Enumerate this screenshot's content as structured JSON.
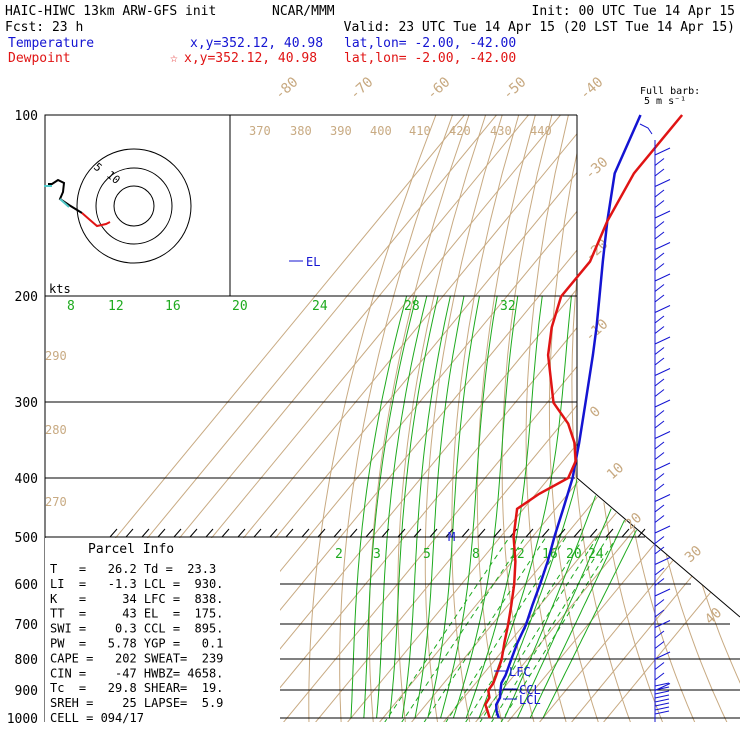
{
  "header": {
    "model": "HAIC-HIWC 13km ARW-GFS init",
    "org": "NCAR/MMM",
    "init": "Init: 00 UTC Tue 14 Apr 15",
    "fcst": "Fcst:    23 h",
    "valid": "Valid: 23 UTC Tue 14 Apr 15 (20 LST Tue 14 Apr 15)"
  },
  "legend": {
    "temperature": {
      "label": "Temperature",
      "xy": "x,y=352.12, 40.98",
      "latlon": "lat,lon= -2.00, -42.00",
      "color": "#1414d2"
    },
    "dewpoint": {
      "label": "Dewpoint",
      "star": "☆",
      "xy": "x,y=352.12, 40.98",
      "latlon": "lat,lon= -2.00, -42.00",
      "color": "#e01414"
    }
  },
  "barb_legend": {
    "line1": "Full barb:",
    "line2": "5 m s⁻¹"
  },
  "hodograph": {
    "units": "kts",
    "ring_labels": [
      "5",
      "10"
    ]
  },
  "parcel_info": {
    "title": "Parcel Info",
    "rows": [
      "T   =   26.2 Td =  23.3",
      "LI  =   -1.3 LCL =  930.",
      "K   =     34 LFC =  838.",
      "TT  =     43 EL  =  175.",
      "SWI =    0.3 CCL =  895.",
      "PW  =   5.78 YGP =   0.1",
      "CAPE =   202 SWEAT=  239",
      "CIN =    -47 HWBZ= 4658.",
      "Tc  =   29.8 SHEAR=  19.",
      "SREH =    25 LAPSE=  5.9",
      "CELL = 094/17"
    ]
  },
  "chart_data": {
    "type": "skew-t",
    "y_axis": "pressure (hPa), log scale",
    "pressure_ticks": [
      "100",
      "200",
      "300",
      "400",
      "500",
      "600",
      "700",
      "800",
      "900",
      "1000"
    ],
    "isotherm_labels": [
      "-80",
      "-70",
      "-60",
      "-50",
      "-40",
      "-30",
      "-20",
      "-10",
      "0",
      "10",
      "20",
      "30",
      "40"
    ],
    "theta_labels": [
      "370",
      "380",
      "390",
      "400",
      "410",
      "420",
      "430",
      "440",
      "290",
      "280",
      "270"
    ],
    "mixing_ratio_labels": [
      "2",
      "3",
      "5",
      "8",
      "12",
      "16",
      "20",
      "24"
    ],
    "theta_e_labels": [
      "8",
      "12",
      "16",
      "20",
      "24",
      "28",
      "32"
    ],
    "level_labels": [
      "EL",
      "M",
      "LFC",
      "CCL",
      "LCL"
    ],
    "series": [
      {
        "name": "Temperature",
        "color": "#1414d2",
        "points": [
          [
            1000,
            26.2
          ],
          [
            975,
            23.8
          ],
          [
            950,
            21.9
          ],
          [
            925,
            21.3
          ],
          [
            900,
            19.6
          ],
          [
            875,
            18.0
          ],
          [
            850,
            17.3
          ],
          [
            800,
            15.0
          ],
          [
            750,
            12.6
          ],
          [
            700,
            10.6
          ],
          [
            650,
            7.6
          ],
          [
            600,
            4.6
          ],
          [
            550,
            1.1
          ],
          [
            500,
            -3.2
          ],
          [
            450,
            -7.6
          ],
          [
            400,
            -12.6
          ],
          [
            375,
            -16.0
          ],
          [
            350,
            -19.6
          ],
          [
            300,
            -28.0
          ],
          [
            250,
            -38.0
          ],
          [
            225,
            -44.0
          ],
          [
            200,
            -51.0
          ],
          [
            175,
            -59.0
          ],
          [
            150,
            -68.0
          ],
          [
            125,
            -78.0
          ],
          [
            100,
            -85.0
          ]
        ]
      },
      {
        "name": "Dewpoint",
        "color": "#e01414",
        "points": [
          [
            1000,
            23.3
          ],
          [
            975,
            21.0
          ],
          [
            950,
            18.5
          ],
          [
            925,
            18.0
          ],
          [
            900,
            15.8
          ],
          [
            875,
            15.5
          ],
          [
            850,
            14.4
          ],
          [
            800,
            12.0
          ],
          [
            750,
            8.5
          ],
          [
            700,
            5.0
          ],
          [
            650,
            1.0
          ],
          [
            600,
            -3.5
          ],
          [
            550,
            -9.0
          ],
          [
            500,
            -16.0
          ],
          [
            450,
            -22.0
          ],
          [
            425,
            -19.0
          ],
          [
            400,
            -14.0
          ],
          [
            375,
            -16.0
          ],
          [
            350,
            -21.0
          ],
          [
            325,
            -28.0
          ],
          [
            300,
            -38.0
          ],
          [
            250,
            -52.0
          ],
          [
            225,
            -58.0
          ],
          [
            200,
            -63.0
          ],
          [
            175,
            -63.0
          ],
          [
            150,
            -68.0
          ],
          [
            125,
            -72.0
          ],
          [
            100,
            -72.0
          ]
        ]
      }
    ]
  }
}
